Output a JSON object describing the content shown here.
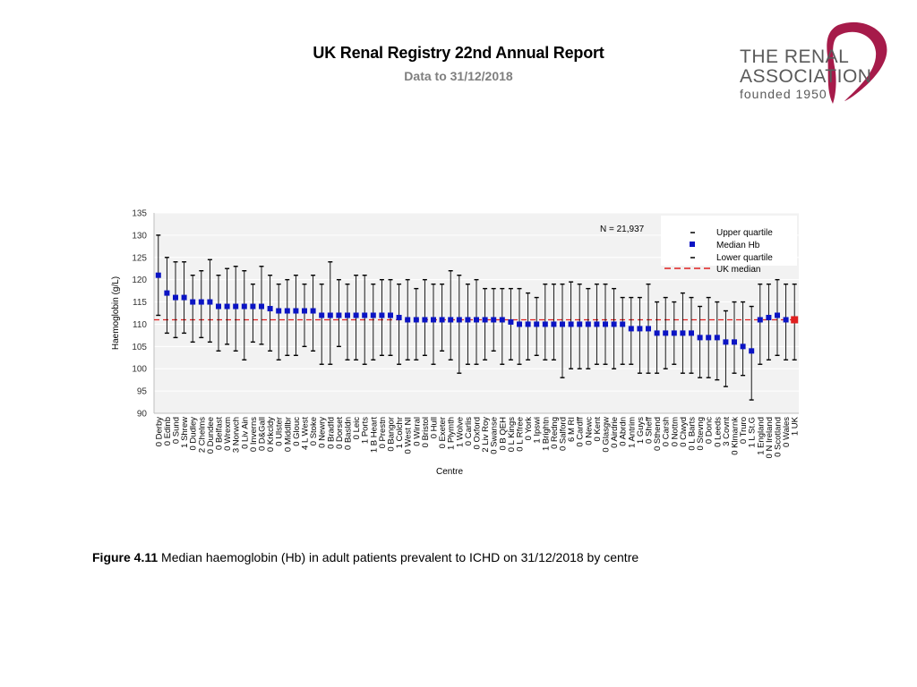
{
  "header": {
    "title": "UK Renal Registry 22nd Annual Report",
    "subtitle": "Data to 31/12/2018"
  },
  "logo": {
    "line1": "THE RENAL",
    "line2": "ASSOCIATION",
    "line3": "founded 1950",
    "color": "#a61b4a"
  },
  "caption": {
    "label": "Figure 4.11",
    "text": " Median haemoglobin (Hb) in adult patients prevalent to ICHD on 31/12/2018 by centre"
  },
  "chart_data": {
    "type": "scatter",
    "title": "",
    "xlabel": "Centre",
    "ylabel": "Haemoglobin (g/L)",
    "ylim": [
      90,
      135
    ],
    "yticks": [
      90,
      95,
      100,
      105,
      110,
      115,
      120,
      125,
      130,
      135
    ],
    "uk_median": 111,
    "n_label": "N = 21,937",
    "grid": true,
    "legend": {
      "placement": "top-right",
      "items": [
        "Upper quartile",
        "Median Hb",
        "Lower quartile",
        "UK median"
      ]
    },
    "colors": {
      "median": "#0b14c4",
      "uk_point": "#e02020",
      "uk_median_line": "#e02020",
      "whisker": "#000000",
      "plot_bg": "#f2f2f2",
      "grid": "#ffffff"
    },
    "categories": [
      "0 Derby",
      "0 Edinb",
      "0 Sund",
      "1 Shrew",
      "0 Dudley",
      "2 Chelms",
      "0 Dundee",
      "0 Belfast",
      "0 Wrexm",
      "3 Norwch",
      "0 Liv Ain",
      "0 Inverns",
      "0 D&Gall",
      "0 Krkcldy",
      "0 Ulster",
      "0 Middlbr",
      "0 Glouc",
      "4 L West",
      "0 Stoke",
      "0 Newry",
      "0 Bradfd",
      "0 Dorset",
      "0 Basldn",
      "0 Leic",
      "1 Ports",
      "1 B Heart",
      "0 Prestn",
      "0 Bangor",
      "1 Colchr",
      "0 West NI",
      "0 Wirral",
      "0 Bristol",
      "0 Hull",
      "0 Exeter",
      "1 Plymth",
      "1 Wolve",
      "0 Carlis",
      "0 Oxford",
      "2 Liv Roy",
      "0 Swanse",
      "0 B QEH",
      "0 L Kings",
      "0 L Rfree",
      "0 York",
      "1 Ipswi",
      "1 Brightn",
      "0 Redng",
      "0 Salford",
      "6 M RI",
      "0 Cardff",
      "0 Newc",
      "0 Kent",
      "0 Glasgw",
      "0 Airdrie",
      "0 Abrdn",
      "1 Antrim",
      "1 Guys",
      "0 Sheff",
      "0 Sthend",
      "0 Carsh",
      "0 Nottm",
      "0 Clwyd",
      "0 L Barts",
      "0 Stevng",
      "0 Donc",
      "0 Leeds",
      "3 Covnt",
      "0 Klmarnk",
      "0 Truro",
      "1 L St.G",
      "1 England",
      "0 N Ireland",
      "0 Scotland",
      "0 Wales",
      "1 UK"
    ],
    "median": [
      121,
      117,
      116,
      116,
      115,
      115,
      115,
      114,
      114,
      114,
      114,
      114,
      114,
      113.5,
      113,
      113,
      113,
      113,
      113,
      112,
      112,
      112,
      112,
      112,
      112,
      112,
      112,
      112,
      111.5,
      111,
      111,
      111,
      111,
      111,
      111,
      111,
      111,
      111,
      111,
      111,
      111,
      110.5,
      110,
      110,
      110,
      110,
      110,
      110,
      110,
      110,
      110,
      110,
      110,
      110,
      110,
      109,
      109,
      109,
      108,
      108,
      108,
      108,
      108,
      107,
      107,
      107,
      106,
      106,
      105,
      104,
      111,
      111.5,
      112,
      111,
      111
    ],
    "upper": [
      130,
      125,
      124,
      124,
      121,
      122,
      124.5,
      121,
      122.5,
      123,
      122,
      119,
      123,
      121,
      119,
      120,
      121,
      119,
      121,
      119,
      124,
      120,
      119,
      121,
      121,
      119,
      120,
      120,
      119,
      120,
      118,
      120,
      119,
      119,
      122,
      121,
      119,
      120,
      118,
      118,
      118,
      118,
      118,
      117,
      116,
      119,
      119,
      119,
      119.5,
      119,
      118,
      119,
      119,
      118,
      116,
      116,
      116,
      119,
      115,
      116,
      115,
      117,
      116,
      114,
      116,
      115,
      113,
      115,
      115,
      114,
      119,
      119,
      120,
      119,
      119
    ],
    "lower": [
      112,
      108,
      107,
      108,
      106,
      107,
      106,
      104,
      105.5,
      104,
      102,
      106,
      105.5,
      104,
      102,
      103,
      103,
      105,
      104,
      101,
      101,
      105,
      102,
      102,
      101,
      102,
      103,
      103,
      101,
      102,
      102,
      103,
      101,
      104,
      102,
      99,
      101,
      101,
      102,
      104,
      101,
      102,
      101,
      102,
      103,
      102,
      102,
      98,
      100,
      100,
      100,
      101,
      101,
      100,
      101,
      101,
      99,
      99,
      99,
      100,
      101,
      99,
      99,
      98,
      98,
      97.5,
      96,
      99,
      98.5,
      93,
      101,
      102,
      103,
      102,
      102
    ]
  }
}
